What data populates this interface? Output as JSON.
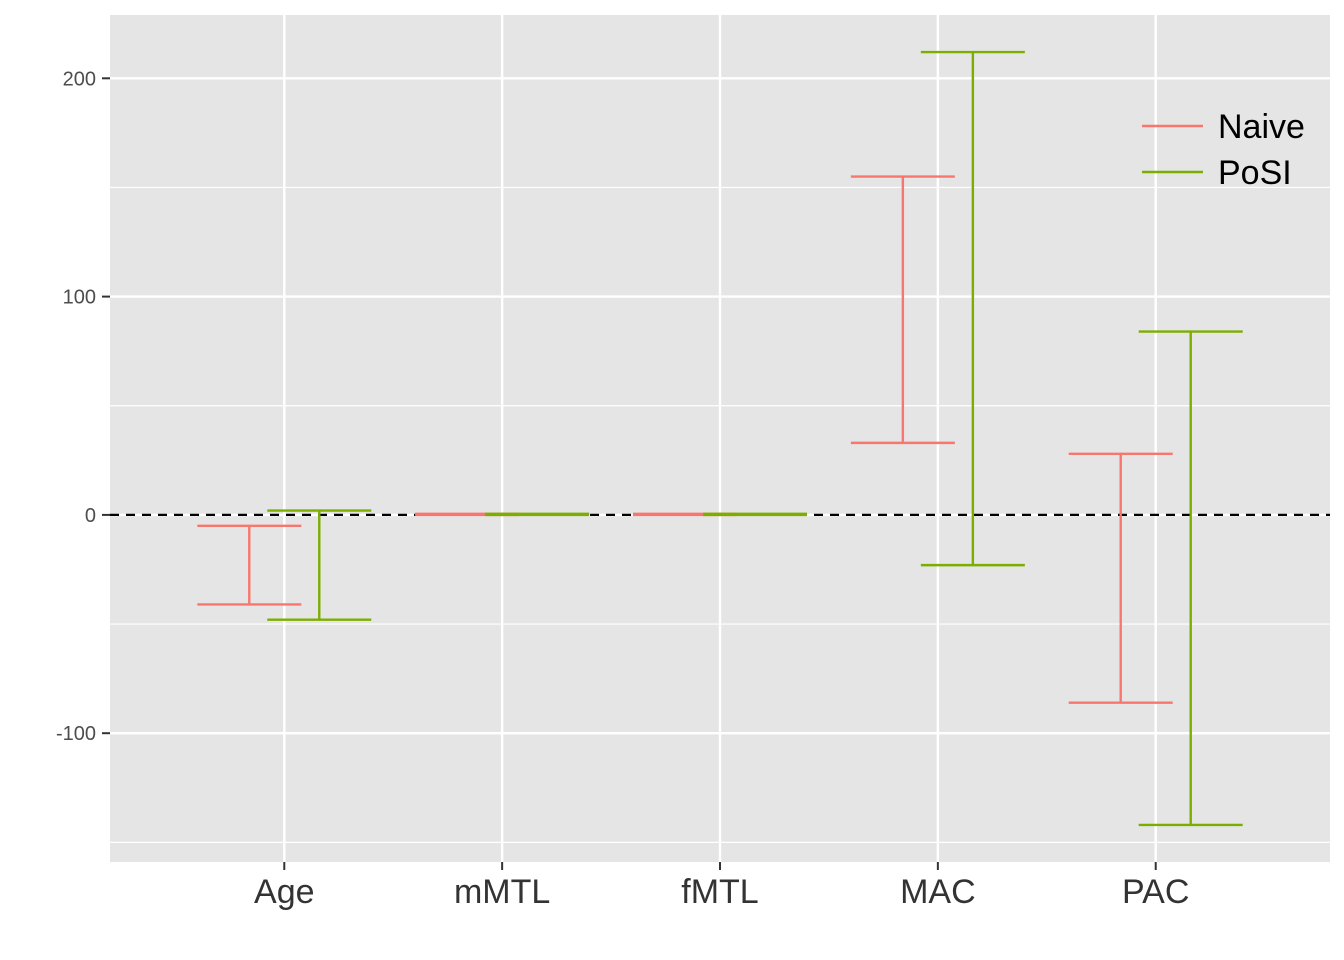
{
  "chart_data": {
    "type": "errorbar",
    "categories": [
      "Age",
      "mMTL",
      "fMTL",
      "MAC",
      "PAC"
    ],
    "series": [
      {
        "name": "Naive",
        "color": "#F8766D",
        "lower": [
          -41,
          0,
          0,
          33,
          -86
        ],
        "upper": [
          -5,
          0.5,
          0.5,
          155,
          28
        ]
      },
      {
        "name": "PoSI",
        "color": "#7CAE00",
        "lower": [
          -48,
          0,
          0,
          -23,
          -142
        ],
        "upper": [
          2,
          0.5,
          0.5,
          212,
          84
        ]
      }
    ],
    "y_ticks": [
      -100,
      0,
      100,
      200
    ],
    "y_tick_labels": [
      "-100",
      "0",
      "100",
      "200"
    ],
    "ylim": [
      -159,
      229
    ],
    "reference_line": 0,
    "grid": true,
    "legend_position": "top-right",
    "panel_color": "#E5E5E5",
    "grid_color": "#FFFFFF"
  }
}
